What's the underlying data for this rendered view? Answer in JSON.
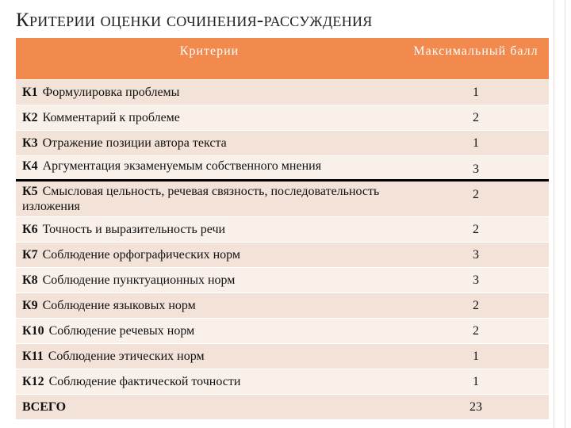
{
  "title": "Критерии оценки сочинения-рассуждения",
  "table": {
    "header": [
      "Критерии",
      "Максимальный балл"
    ],
    "rows": [
      [
        "К1",
        "Формулировка проблемы",
        1
      ],
      [
        "К2",
        "Комментарий к проблеме",
        2
      ],
      [
        "К3",
        "Отражение позиции автора текста",
        1
      ],
      [
        "К4",
        "Аргументация экзаменуемым собственного мнения",
        3
      ],
      [
        "К5",
        "Смысловая цельность, речевая связность, последовательность изложения",
        2
      ],
      [
        "К6",
        "Точность и выразительность речи",
        2
      ],
      [
        "К7",
        "Соблюдение орфографических норм",
        3
      ],
      [
        "К8",
        "Соблюдение пунктуационных норм",
        3
      ],
      [
        "К9",
        "Соблюдение языковых норм",
        2
      ],
      [
        "К10",
        "Соблюдение речевых норм",
        2
      ],
      [
        "К11",
        "Соблюдение этических норм",
        1
      ],
      [
        "К12",
        "Соблюдение фактической точности",
        1
      ]
    ],
    "total": [
      "ВСЕГО",
      23
    ]
  }
}
